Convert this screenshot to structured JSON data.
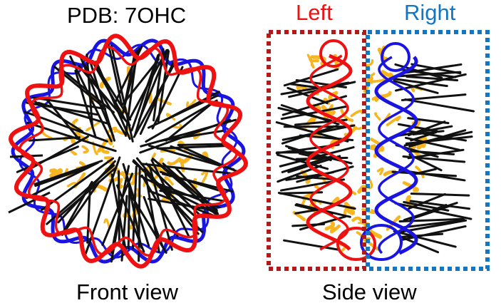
{
  "title": "PDB: 7OHC",
  "labels": {
    "left": "Left",
    "right": "Right",
    "front": "Front view",
    "side": "Side view"
  },
  "colors": {
    "left_strand": "#ee1111",
    "right_strand": "#1a14e0",
    "protein": "#f7b520",
    "bonds": "#111111",
    "left_box": "#b51818",
    "right_box": "#1475c2"
  }
}
